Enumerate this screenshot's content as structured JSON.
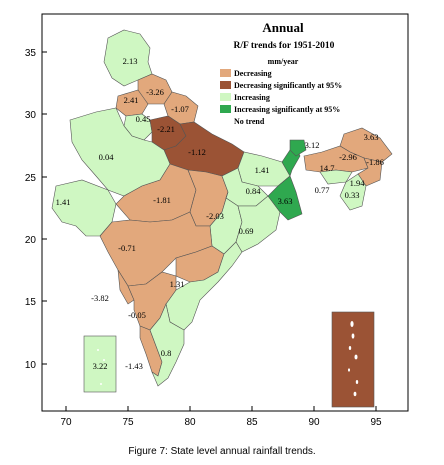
{
  "map": {
    "title": "Annual",
    "subtitle": "R/F trends for 1951-2010",
    "unit": "mm/year",
    "x_ticks": [
      "70",
      "75",
      "80",
      "85",
      "90",
      "95"
    ],
    "y_ticks": [
      "35",
      "30",
      "25",
      "20",
      "15",
      "10"
    ],
    "legend": [
      {
        "label": "Decreasing",
        "color": "#e2a87c"
      },
      {
        "label": "Decreasing significantly at 95%",
        "color": "#9b5335"
      },
      {
        "label": "Increasing",
        "color": "#cff7c2"
      },
      {
        "label": "Increasing significantly at 95%",
        "color": "#2fa84f"
      },
      {
        "label": "No trend",
        "color": ""
      }
    ],
    "values": [
      "2.13",
      "-3.26",
      "2.41",
      "-1.07",
      "0.45",
      "-2.21",
      "0.04",
      "-1.12",
      "3.12",
      "3.63",
      "-2.96",
      "-1.86",
      "14.7",
      "1.94",
      "0.33",
      "0.77",
      "1.41",
      "0.84",
      "1.41",
      "-1.81",
      "3.63",
      "-2.03",
      "0.69",
      "-0.71",
      "1.31",
      "-3.82",
      "-0.05",
      "0.8",
      "-1.43",
      "3.22"
    ]
  },
  "caption": "Figure 7: State level annual rainfall trends."
}
